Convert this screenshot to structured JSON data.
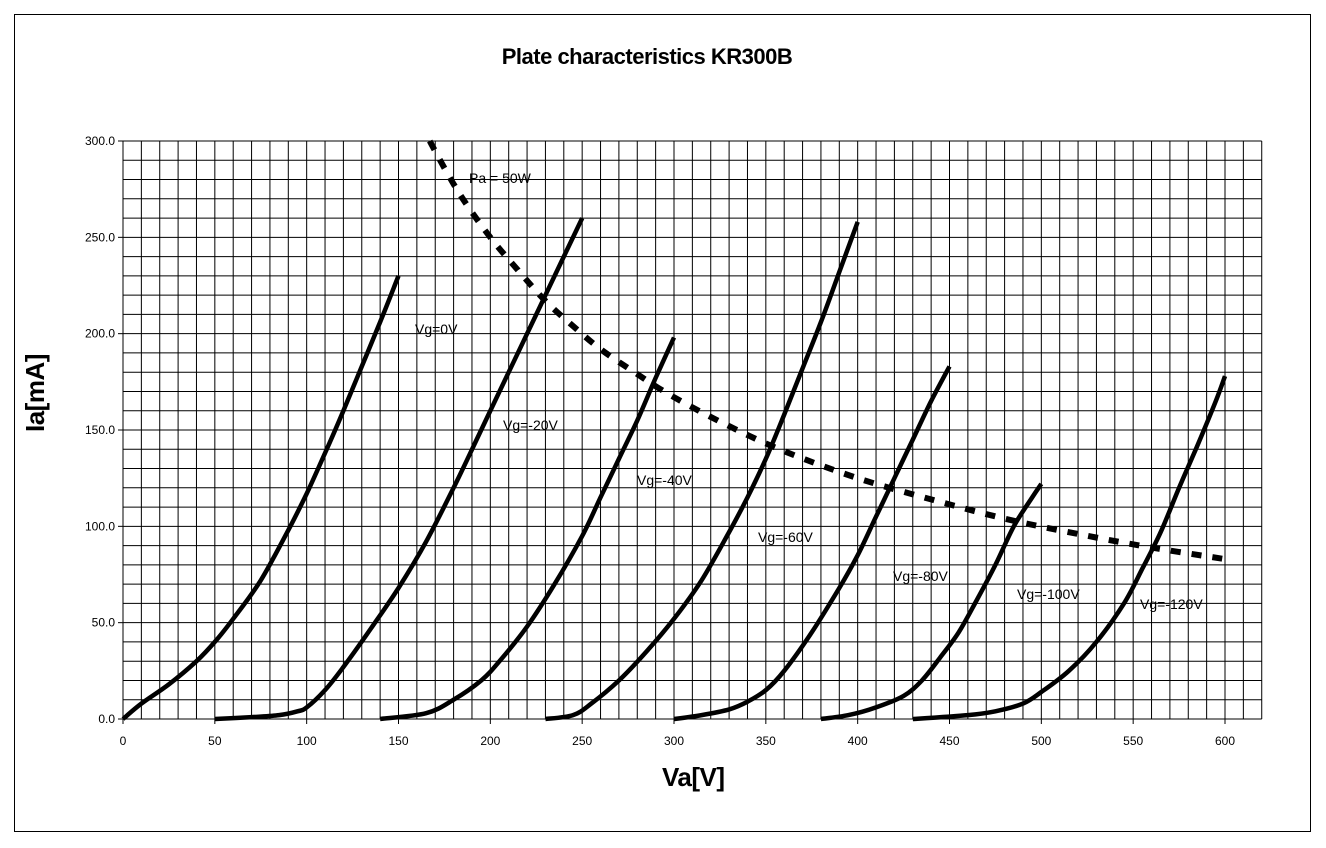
{
  "chart_data": {
    "type": "line",
    "title": "Plate characteristics KR300B",
    "xlabel": "Va[V]",
    "ylabel": "Ia[mA]",
    "xlim": [
      0,
      620
    ],
    "ylim": [
      0,
      300
    ],
    "grid": true,
    "x_ticks": [
      "0",
      "50",
      "100",
      "150",
      "200",
      "250",
      "300",
      "350",
      "400",
      "450",
      "500",
      "550",
      "600"
    ],
    "y_ticks": [
      "0.0",
      "50.0",
      "100.0",
      "150.0",
      "200.0",
      "250.0",
      "300.0"
    ],
    "series": [
      {
        "name": "Vg=0V",
        "points": [
          [
            0,
            0
          ],
          [
            10,
            8
          ],
          [
            25,
            18
          ],
          [
            40,
            30
          ],
          [
            50,
            40
          ],
          [
            60,
            52
          ],
          [
            75,
            72
          ],
          [
            90,
            98
          ],
          [
            100,
            117
          ],
          [
            110,
            138
          ],
          [
            120,
            160
          ],
          [
            130,
            183
          ],
          [
            140,
            206
          ],
          [
            150,
            230
          ]
        ]
      },
      {
        "name": "Vg=-20V",
        "points": [
          [
            50,
            0
          ],
          [
            70,
            1
          ],
          [
            85,
            2
          ],
          [
            95,
            4
          ],
          [
            100,
            6
          ],
          [
            110,
            15
          ],
          [
            120,
            27
          ],
          [
            135,
            47
          ],
          [
            150,
            68
          ],
          [
            165,
            92
          ],
          [
            180,
            120
          ],
          [
            195,
            150
          ],
          [
            210,
            180
          ],
          [
            225,
            210
          ],
          [
            240,
            240
          ],
          [
            250,
            260
          ]
        ]
      },
      {
        "name": "Vg=-40V",
        "points": [
          [
            140,
            0
          ],
          [
            165,
            3
          ],
          [
            180,
            10
          ],
          [
            195,
            20
          ],
          [
            205,
            30
          ],
          [
            220,
            48
          ],
          [
            235,
            70
          ],
          [
            250,
            95
          ],
          [
            260,
            115
          ],
          [
            270,
            135
          ],
          [
            280,
            155
          ],
          [
            290,
            177
          ],
          [
            300,
            198
          ]
        ]
      },
      {
        "name": "Vg=-60V",
        "points": [
          [
            230,
            0
          ],
          [
            245,
            2
          ],
          [
            255,
            8
          ],
          [
            270,
            20
          ],
          [
            285,
            35
          ],
          [
            300,
            52
          ],
          [
            315,
            72
          ],
          [
            330,
            97
          ],
          [
            340,
            115
          ],
          [
            350,
            135
          ],
          [
            360,
            158
          ],
          [
            370,
            182
          ],
          [
            380,
            206
          ],
          [
            390,
            232
          ],
          [
            400,
            258
          ]
        ]
      },
      {
        "name": "Vg=-80V",
        "points": [
          [
            300,
            0
          ],
          [
            315,
            2
          ],
          [
            330,
            5
          ],
          [
            340,
            9
          ],
          [
            350,
            15
          ],
          [
            360,
            25
          ],
          [
            375,
            45
          ],
          [
            390,
            68
          ],
          [
            400,
            85
          ],
          [
            410,
            105
          ],
          [
            420,
            125
          ],
          [
            430,
            145
          ],
          [
            440,
            165
          ],
          [
            450,
            183
          ]
        ]
      },
      {
        "name": "Vg=-100V",
        "points": [
          [
            380,
            0
          ],
          [
            395,
            2
          ],
          [
            410,
            6
          ],
          [
            425,
            12
          ],
          [
            435,
            20
          ],
          [
            445,
            32
          ],
          [
            455,
            45
          ],
          [
            465,
            62
          ],
          [
            475,
            80
          ],
          [
            485,
            100
          ],
          [
            495,
            115
          ],
          [
            500,
            122
          ]
        ]
      },
      {
        "name": "Vg=-120V",
        "points": [
          [
            430,
            0
          ],
          [
            460,
            2
          ],
          [
            475,
            4
          ],
          [
            490,
            8
          ],
          [
            500,
            14
          ],
          [
            515,
            25
          ],
          [
            530,
            40
          ],
          [
            545,
            60
          ],
          [
            555,
            78
          ],
          [
            565,
            97
          ],
          [
            575,
            120
          ],
          [
            585,
            142
          ],
          [
            595,
            165
          ],
          [
            600,
            178
          ]
        ]
      },
      {
        "name": "Pa = 50W",
        "points": [
          [
            167,
            300
          ],
          [
            175,
            286
          ],
          [
            185,
            270
          ],
          [
            200,
            250
          ],
          [
            215,
            233
          ],
          [
            230,
            217
          ],
          [
            245,
            204
          ],
          [
            260,
            192
          ],
          [
            280,
            179
          ],
          [
            300,
            167
          ],
          [
            330,
            152
          ],
          [
            360,
            139
          ],
          [
            400,
            125
          ],
          [
            440,
            114
          ],
          [
            480,
            104
          ],
          [
            520,
            96
          ],
          [
            560,
            89
          ],
          [
            600,
            83
          ]
        ]
      }
    ],
    "annotations": {
      "pa": "Pa = 50W",
      "vg0": "Vg=0V",
      "vg20": "Vg=-20V",
      "vg40": "Vg=-40V",
      "vg60": "Vg=-60V",
      "vg80": "Vg=-80V",
      "vg100": "Vg=-100V",
      "vg120": "Vg=-120V"
    }
  }
}
